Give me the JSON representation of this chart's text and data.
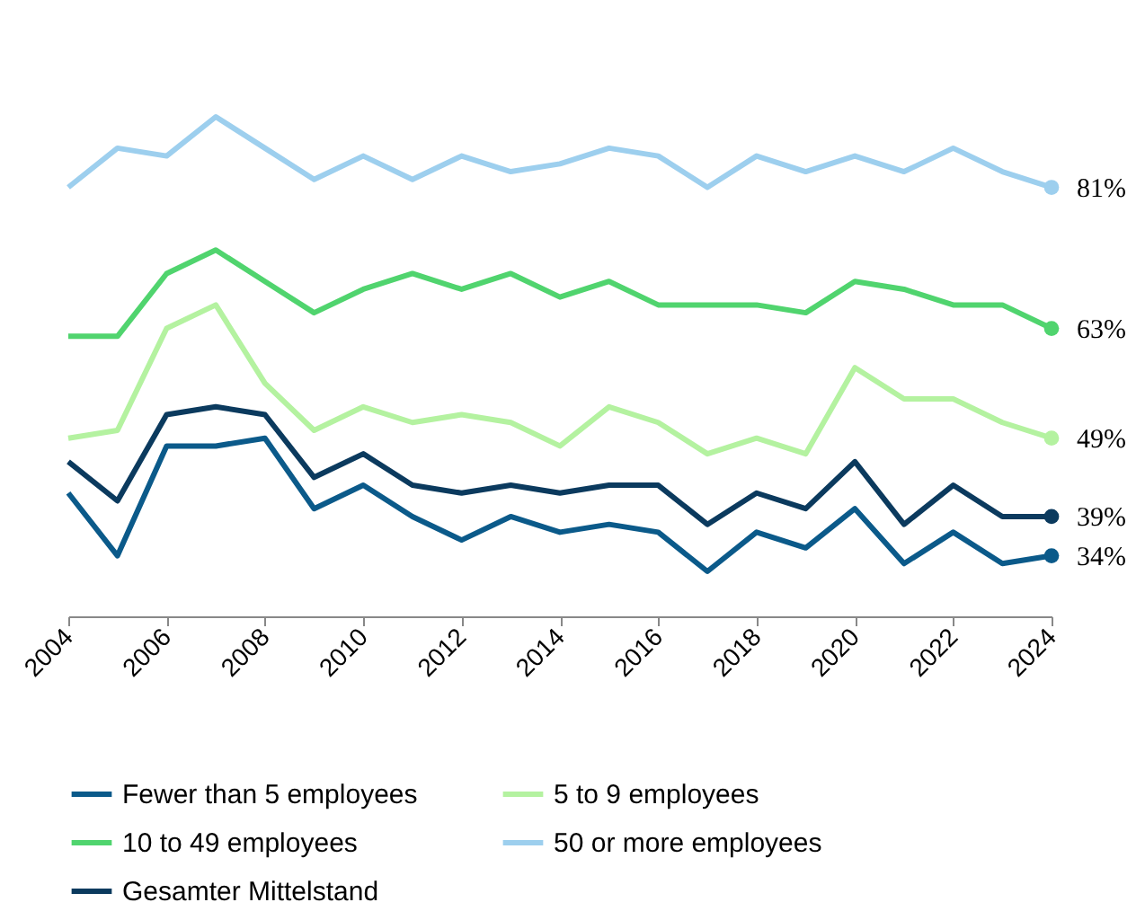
{
  "chart_data": {
    "type": "line",
    "x": [
      2004,
      2005,
      2006,
      2007,
      2008,
      2009,
      2010,
      2011,
      2012,
      2013,
      2014,
      2015,
      2016,
      2017,
      2018,
      2019,
      2020,
      2021,
      2022,
      2023,
      2024
    ],
    "xlim": [
      2004,
      2024
    ],
    "xticks": [
      2004,
      2006,
      2008,
      2010,
      2012,
      2014,
      2016,
      2018,
      2020,
      2022,
      2024
    ],
    "tick_labels": "x",
    "legend": "bottom",
    "series": [
      {
        "name": "Fewer than 5 employees",
        "color": "#0b5a8a",
        "values": [
          42,
          34,
          48,
          48,
          49,
          40,
          43,
          39,
          36,
          39,
          37,
          38,
          37,
          32,
          37,
          35,
          40,
          33,
          37,
          33,
          34
        ],
        "value_labels": [
          null,
          null,
          null,
          null,
          null,
          null,
          null,
          null,
          null,
          null,
          null,
          null,
          null,
          null,
          null,
          null,
          null,
          null,
          null,
          null,
          "34%"
        ]
      },
      {
        "name": "5 to 9 employees",
        "color": "#b4f2a0",
        "values": [
          49,
          50,
          63,
          66,
          56,
          50,
          53,
          51,
          52,
          51,
          48,
          53,
          51,
          47,
          49,
          47,
          58,
          54,
          54,
          51,
          49
        ],
        "value_labels": [
          null,
          null,
          null,
          null,
          null,
          null,
          null,
          null,
          null,
          null,
          null,
          null,
          null,
          null,
          null,
          null,
          null,
          null,
          null,
          null,
          "49%"
        ]
      },
      {
        "name": "10 to 49 employees",
        "color": "#50d46e",
        "values": [
          62,
          62,
          70,
          73,
          69,
          65,
          68,
          70,
          68,
          70,
          67,
          69,
          66,
          66,
          66,
          65,
          69,
          68,
          66,
          66,
          63
        ],
        "value_labels": [
          null,
          null,
          null,
          null,
          null,
          null,
          null,
          null,
          null,
          null,
          null,
          null,
          null,
          null,
          null,
          null,
          null,
          null,
          null,
          null,
          "63%"
        ]
      },
      {
        "name": "50 or more employees",
        "color": "#9dcfee",
        "values": [
          81,
          86,
          85,
          90,
          86,
          82,
          85,
          82,
          85,
          83,
          84,
          86,
          85,
          81,
          85,
          83,
          85,
          83,
          86,
          83,
          81
        ],
        "value_labels": [
          null,
          null,
          null,
          null,
          null,
          null,
          null,
          null,
          null,
          null,
          null,
          null,
          null,
          null,
          null,
          null,
          null,
          null,
          null,
          null,
          "81%"
        ]
      },
      {
        "name": "Gesamter Mittelstand",
        "color": "#0b3a5e",
        "values": [
          46,
          41,
          52,
          53,
          52,
          44,
          47,
          43,
          42,
          43,
          42,
          43,
          43,
          38,
          42,
          40,
          46,
          38,
          43,
          39,
          39
        ],
        "value_labels": [
          null,
          null,
          null,
          null,
          null,
          null,
          null,
          null,
          null,
          null,
          null,
          null,
          null,
          null,
          null,
          null,
          null,
          null,
          null,
          null,
          "39%"
        ]
      }
    ]
  }
}
